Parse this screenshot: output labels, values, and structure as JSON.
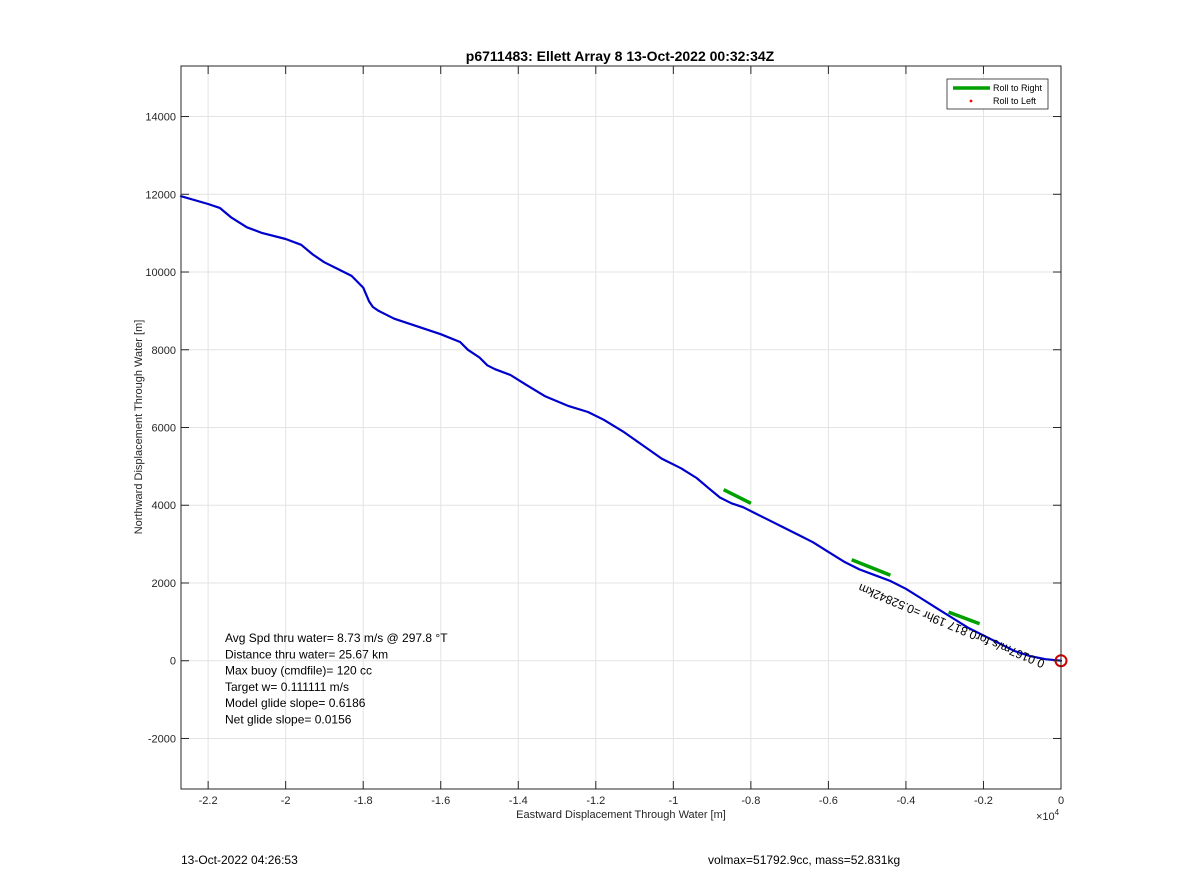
{
  "chart_data": {
    "type": "line",
    "title": "p6711483: Ellett Array 8 13-Oct-2022 00:32:34Z",
    "xlabel": "Eastward Displacement Through Water [m]",
    "ylabel": "Northward Displacement Through Water [m]",
    "x_exponent_label": "×10",
    "x_exponent_power": "4",
    "xlim": [
      -22700,
      0
    ],
    "ylim": [
      -3300,
      15300
    ],
    "x_ticks": [
      -22000,
      -20000,
      -18000,
      -16000,
      -14000,
      -12000,
      -10000,
      -8000,
      -6000,
      -4000,
      -2000,
      0
    ],
    "x_tick_labels": [
      "-2.2",
      "-2",
      "-1.8",
      "-1.6",
      "-1.4",
      "-1.2",
      "-1",
      "-0.8",
      "-0.6",
      "-0.4",
      "-0.2",
      "0"
    ],
    "y_ticks": [
      -2000,
      0,
      2000,
      4000,
      6000,
      8000,
      10000,
      12000,
      14000
    ],
    "y_tick_labels": [
      "-2000",
      "0",
      "2000",
      "4000",
      "6000",
      "8000",
      "10000",
      "12000",
      "14000"
    ],
    "grid": true,
    "legend_position": "top-right",
    "legend": [
      {
        "name": "Roll to Right",
        "color": "#00a000",
        "marker": "line"
      },
      {
        "name": "Roll to Left",
        "color": "#ff0000",
        "marker": "dot"
      }
    ],
    "track_color": "#0000cc",
    "track": {
      "x": [
        -22700,
        -22000,
        -21700,
        -21400,
        -21000,
        -20600,
        -20000,
        -19600,
        -19300,
        -19000,
        -18700,
        -18300,
        -18000,
        -17850,
        -17750,
        -17600,
        -17200,
        -16600,
        -16000,
        -15500,
        -15300,
        -15000,
        -14800,
        -14600,
        -14200,
        -13800,
        -13300,
        -12700,
        -12200,
        -11800,
        -11300,
        -10800,
        -10300,
        -9800,
        -9400,
        -9100,
        -8800,
        -8500,
        -8200,
        -7800,
        -7500,
        -7200,
        -6800,
        -6400,
        -6000,
        -5600,
        -5200,
        -4800,
        -4400,
        -4000,
        -3600,
        -3200,
        -2800,
        -2400,
        -2000,
        -1600,
        -1200,
        -800,
        -400,
        0
      ],
      "y": [
        11950,
        11750,
        11650,
        11400,
        11150,
        11000,
        10850,
        10700,
        10450,
        10250,
        10100,
        9900,
        9600,
        9250,
        9100,
        9000,
        8800,
        8600,
        8400,
        8200,
        8000,
        7800,
        7600,
        7500,
        7350,
        7100,
        6800,
        6550,
        6400,
        6200,
        5900,
        5550,
        5200,
        4950,
        4700,
        4450,
        4200,
        4050,
        3950,
        3750,
        3600,
        3450,
        3250,
        3050,
        2800,
        2550,
        2350,
        2200,
        2050,
        1850,
        1600,
        1350,
        1100,
        850,
        650,
        450,
        250,
        120,
        40,
        0
      ]
    },
    "roll_right_segments": [
      {
        "x": [
          -8700,
          -8000
        ],
        "y": [
          4400,
          4050
        ]
      },
      {
        "x": [
          -5400,
          -4400
        ],
        "y": [
          2600,
          2200
        ]
      },
      {
        "x": [
          -2900,
          -2100
        ],
        "y": [
          1250,
          950
        ]
      }
    ],
    "current_vector": {
      "label": "0.0167m/s for0.817 19hr =0.52842km",
      "anchor_x": -400,
      "anchor_y": 0,
      "tail_x": -5200,
      "tail_y": 2000
    },
    "end_marker": {
      "x": 0,
      "y": 0,
      "color": "#cc0000"
    },
    "annotations": [
      "Avg Spd thru water=  8.73 m/s @ 297.8 °T",
      "Distance thru water= 25.67 km",
      "Max buoy (cmdfile)= 120 cc",
      "Target w= 0.111111 m/s",
      "Model glide slope= 0.6186",
      "Net glide slope= 0.0156"
    ]
  },
  "footer": {
    "timestamp": "13-Oct-2022 04:26:53",
    "vehicle_info": "volmax=51792.9cc, mass=52.831kg"
  }
}
